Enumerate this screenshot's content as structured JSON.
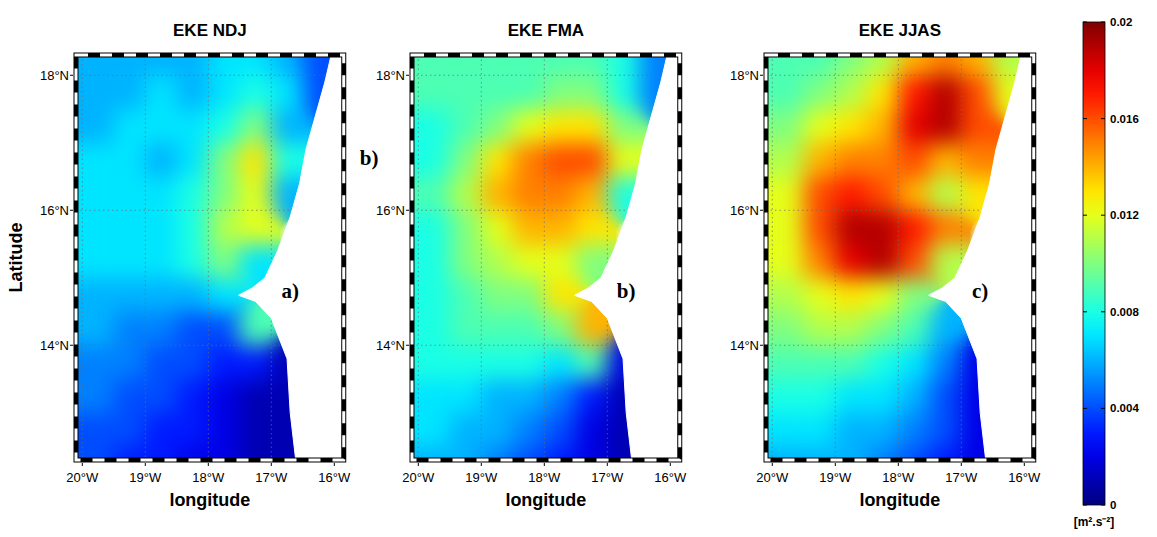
{
  "chart_data": [
    {
      "type": "heatmap",
      "title": "EKE NDJ",
      "xlabel": "longitude",
      "ylabel": "Latitude",
      "panel_label": "a)",
      "annotations": [
        "b)"
      ],
      "x": [
        -19.75,
        -19.25,
        -18.75,
        -18.25,
        -17.75,
        -17.25,
        -16.75,
        -16.25
      ],
      "y": [
        12.25,
        12.75,
        13.25,
        13.75,
        14.25,
        14.75,
        15.25,
        15.75,
        16.25,
        16.75,
        17.25,
        17.75,
        18.25
      ],
      "values": [
        [
          0.004,
          0.003,
          0.003,
          0.002,
          0.002,
          0.001,
          0.001,
          null
        ],
        [
          0.004,
          0.004,
          0.003,
          0.003,
          0.002,
          0.001,
          0.001,
          null
        ],
        [
          0.005,
          0.004,
          0.004,
          0.003,
          0.002,
          0.001,
          0.001,
          null
        ],
        [
          0.005,
          0.005,
          0.004,
          0.004,
          0.003,
          0.003,
          0.001,
          null
        ],
        [
          0.006,
          0.005,
          0.005,
          0.004,
          0.004,
          0.009,
          null,
          null
        ],
        [
          0.006,
          0.006,
          0.006,
          0.006,
          0.007,
          null,
          null,
          null
        ],
        [
          0.007,
          0.007,
          0.007,
          0.008,
          0.01,
          0.007,
          null,
          null
        ],
        [
          0.007,
          0.007,
          0.007,
          0.008,
          0.011,
          0.012,
          null,
          null
        ],
        [
          0.007,
          0.007,
          0.007,
          0.008,
          0.01,
          0.012,
          0.006,
          null
        ],
        [
          0.007,
          0.007,
          0.006,
          0.007,
          0.01,
          0.013,
          0.008,
          null
        ],
        [
          0.006,
          0.007,
          0.007,
          0.007,
          0.008,
          0.01,
          0.006,
          null
        ],
        [
          0.006,
          0.006,
          0.007,
          0.006,
          0.007,
          0.008,
          0.007,
          0.004
        ],
        [
          0.006,
          0.006,
          0.006,
          0.006,
          0.007,
          0.007,
          0.006,
          0.004
        ]
      ],
      "coastline": [
        [
          -16.6,
          12.2
        ],
        [
          -16.7,
          13.0
        ],
        [
          -16.75,
          13.8
        ],
        [
          -17.0,
          14.4
        ],
        [
          -17.25,
          14.65
        ],
        [
          -17.52,
          14.74
        ],
        [
          -17.3,
          14.85
        ],
        [
          -17.1,
          15.0
        ],
        [
          -16.9,
          15.4
        ],
        [
          -16.7,
          15.9
        ],
        [
          -16.55,
          16.4
        ],
        [
          -16.45,
          16.9
        ],
        [
          -16.3,
          17.4
        ],
        [
          -16.15,
          17.9
        ],
        [
          -16.05,
          18.3
        ]
      ],
      "xlim": [
        -20.1,
        -15.85
      ],
      "ylim": [
        12.3,
        18.3
      ],
      "xticks": [
        {
          "value": -20,
          "label": "20°W"
        },
        {
          "value": -19,
          "label": "19°W"
        },
        {
          "value": -18,
          "label": "18°W"
        },
        {
          "value": -17,
          "label": "17°W"
        },
        {
          "value": -16,
          "label": "16°W"
        }
      ],
      "yticks": [
        {
          "value": 14,
          "label": "14°N"
        },
        {
          "value": 16,
          "label": "16°N"
        },
        {
          "value": 18,
          "label": "18°N"
        }
      ],
      "grid": true
    },
    {
      "type": "heatmap",
      "title": "EKE FMA",
      "xlabel": "longitude",
      "panel_label": "b)",
      "x": [
        -19.75,
        -19.25,
        -18.75,
        -18.25,
        -17.75,
        -17.25,
        -16.75,
        -16.25
      ],
      "y": [
        12.25,
        12.75,
        13.25,
        13.75,
        14.25,
        14.75,
        15.25,
        15.75,
        16.25,
        16.75,
        17.25,
        17.75,
        18.25
      ],
      "values": [
        [
          0.006,
          0.006,
          0.005,
          0.004,
          0.003,
          0.002,
          0.001,
          null
        ],
        [
          0.007,
          0.006,
          0.006,
          0.005,
          0.004,
          0.002,
          0.001,
          null
        ],
        [
          0.007,
          0.007,
          0.006,
          0.006,
          0.005,
          0.003,
          0.001,
          null
        ],
        [
          0.008,
          0.008,
          0.008,
          0.008,
          0.007,
          0.009,
          0.002,
          null
        ],
        [
          0.008,
          0.009,
          0.009,
          0.009,
          0.01,
          0.014,
          null,
          null
        ],
        [
          0.008,
          0.009,
          0.01,
          0.01,
          0.013,
          null,
          null,
          null
        ],
        [
          0.008,
          0.01,
          0.011,
          0.012,
          0.012,
          0.01,
          null,
          null
        ],
        [
          0.008,
          0.01,
          0.012,
          0.014,
          0.014,
          0.013,
          null,
          null
        ],
        [
          0.009,
          0.011,
          0.014,
          0.015,
          0.015,
          0.014,
          0.008,
          null
        ],
        [
          0.008,
          0.01,
          0.013,
          0.015,
          0.016,
          0.016,
          0.012,
          null
        ],
        [
          0.008,
          0.009,
          0.01,
          0.012,
          0.013,
          0.013,
          0.01,
          null
        ],
        [
          0.009,
          0.009,
          0.009,
          0.009,
          0.01,
          0.01,
          0.008,
          0.005
        ],
        [
          0.009,
          0.009,
          0.009,
          0.009,
          0.009,
          0.009,
          0.008,
          0.005
        ]
      ],
      "coastline": [
        [
          -16.6,
          12.2
        ],
        [
          -16.7,
          13.0
        ],
        [
          -16.75,
          13.8
        ],
        [
          -17.0,
          14.4
        ],
        [
          -17.25,
          14.65
        ],
        [
          -17.52,
          14.74
        ],
        [
          -17.3,
          14.85
        ],
        [
          -17.1,
          15.0
        ],
        [
          -16.9,
          15.4
        ],
        [
          -16.7,
          15.9
        ],
        [
          -16.55,
          16.4
        ],
        [
          -16.45,
          16.9
        ],
        [
          -16.3,
          17.4
        ],
        [
          -16.15,
          17.9
        ],
        [
          -16.05,
          18.3
        ]
      ],
      "xlim": [
        -20.1,
        -15.85
      ],
      "ylim": [
        12.3,
        18.3
      ],
      "xticks": [
        {
          "value": -20,
          "label": "20°W"
        },
        {
          "value": -19,
          "label": "19°W"
        },
        {
          "value": -18,
          "label": "18°W"
        },
        {
          "value": -17,
          "label": "17°W"
        },
        {
          "value": -16,
          "label": "16°W"
        }
      ],
      "yticks": [
        {
          "value": 14,
          "label": "14°N"
        },
        {
          "value": 16,
          "label": "16°N"
        },
        {
          "value": 18,
          "label": "18°N"
        }
      ],
      "grid": true
    },
    {
      "type": "heatmap",
      "title": "EKE JJAS",
      "xlabel": "longitude",
      "panel_label": "c)",
      "x": [
        -19.75,
        -19.25,
        -18.75,
        -18.25,
        -17.75,
        -17.25,
        -16.75,
        -16.25
      ],
      "y": [
        12.25,
        12.75,
        13.25,
        13.75,
        14.25,
        14.75,
        15.25,
        15.75,
        16.25,
        16.75,
        17.25,
        17.75,
        18.25
      ],
      "values": [
        [
          0.006,
          0.006,
          0.006,
          0.005,
          0.004,
          0.003,
          0.002,
          null
        ],
        [
          0.007,
          0.007,
          0.006,
          0.006,
          0.005,
          0.004,
          0.002,
          null
        ],
        [
          0.008,
          0.008,
          0.007,
          0.007,
          0.006,
          0.004,
          0.002,
          null
        ],
        [
          0.009,
          0.009,
          0.009,
          0.008,
          0.007,
          0.005,
          0.002,
          null
        ],
        [
          0.01,
          0.011,
          0.011,
          0.01,
          0.009,
          0.006,
          null,
          null
        ],
        [
          0.011,
          0.012,
          0.013,
          0.012,
          0.01,
          null,
          null,
          null
        ],
        [
          0.012,
          0.015,
          0.018,
          0.019,
          0.016,
          0.011,
          null,
          null
        ],
        [
          0.012,
          0.016,
          0.019,
          0.019,
          0.017,
          0.015,
          null,
          null
        ],
        [
          0.012,
          0.016,
          0.017,
          0.016,
          0.014,
          0.011,
          0.013,
          null
        ],
        [
          0.011,
          0.014,
          0.015,
          0.015,
          0.016,
          0.014,
          0.015,
          null
        ],
        [
          0.01,
          0.012,
          0.013,
          0.014,
          0.018,
          0.019,
          0.016,
          null
        ],
        [
          0.009,
          0.01,
          0.011,
          0.013,
          0.017,
          0.019,
          0.016,
          0.012
        ],
        [
          0.009,
          0.009,
          0.01,
          0.011,
          0.014,
          0.015,
          0.014,
          0.011
        ]
      ],
      "coastline": [
        [
          -16.6,
          12.2
        ],
        [
          -16.7,
          13.0
        ],
        [
          -16.75,
          13.8
        ],
        [
          -17.0,
          14.4
        ],
        [
          -17.25,
          14.65
        ],
        [
          -17.52,
          14.74
        ],
        [
          -17.3,
          14.85
        ],
        [
          -17.1,
          15.0
        ],
        [
          -16.9,
          15.4
        ],
        [
          -16.7,
          15.9
        ],
        [
          -16.55,
          16.4
        ],
        [
          -16.45,
          16.9
        ],
        [
          -16.3,
          17.4
        ],
        [
          -16.15,
          17.9
        ],
        [
          -16.05,
          18.3
        ]
      ],
      "xlim": [
        -20.1,
        -15.85
      ],
      "ylim": [
        12.3,
        18.3
      ],
      "xticks": [
        {
          "value": -20,
          "label": "20°W"
        },
        {
          "value": -19,
          "label": "19°W"
        },
        {
          "value": -18,
          "label": "18°W"
        },
        {
          "value": -17,
          "label": "17°W"
        },
        {
          "value": -16,
          "label": "16°W"
        }
      ],
      "yticks": [
        {
          "value": 14,
          "label": "14°N"
        },
        {
          "value": 16,
          "label": "16°N"
        },
        {
          "value": 18,
          "label": "18°N"
        }
      ],
      "grid": true,
      "colorbar_range": [
        0,
        0.02
      ],
      "colorbar_ticks": [
        0,
        0.004,
        0.008,
        0.012,
        0.016,
        0.02
      ],
      "colorbar_label": "[m².s⁻²]"
    }
  ]
}
